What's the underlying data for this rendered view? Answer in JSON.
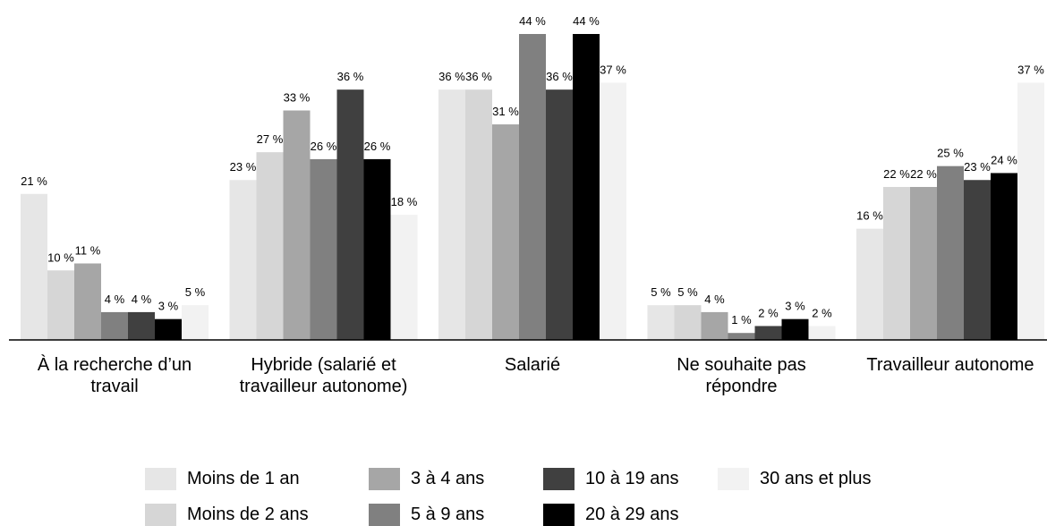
{
  "chart_data": {
    "type": "bar",
    "categories": [
      "À la recherche d’un travail",
      "Hybride (salarié et travailleur autonome)",
      "Salarié",
      "Ne souhaite pas répondre",
      "Travailleur autonome"
    ],
    "series": [
      {
        "name": "Moins de 1 an",
        "color": "#e6e6e6",
        "values": [
          21,
          23,
          36,
          5,
          16
        ],
        "value_labels": [
          "21 %",
          "23 %",
          "36 %",
          "5 %",
          "16 %"
        ]
      },
      {
        "name": "Moins de 2 ans",
        "color": "#d6d6d6",
        "values": [
          10,
          27,
          36,
          5,
          22
        ],
        "value_labels": [
          "10 %",
          "27 %",
          "36 %",
          "5 %",
          "22 %"
        ]
      },
      {
        "name": "3 à 4 ans",
        "color": "#a6a6a6",
        "values": [
          11,
          33,
          31,
          4,
          22
        ],
        "value_labels": [
          "11 %",
          "33 %",
          "31 %",
          "4 %",
          "22 %"
        ]
      },
      {
        "name": "5 à 9 ans",
        "color": "#808080",
        "values": [
          4,
          26,
          44,
          1,
          25
        ],
        "value_labels": [
          "4 %",
          "26 %",
          "44 %",
          "1 %",
          "25 %"
        ]
      },
      {
        "name": "10 à 19 ans",
        "color": "#404040",
        "values": [
          4,
          36,
          36,
          2,
          23
        ],
        "value_labels": [
          "4 %",
          "36 %",
          "36 %",
          "2 %",
          "23 %"
        ]
      },
      {
        "name": "20 à 29 ans",
        "color": "#000000",
        "values": [
          3,
          26,
          44,
          3,
          24
        ],
        "value_labels": [
          "3 %",
          "26 %",
          "44 %",
          "3 %",
          "24 %"
        ]
      },
      {
        "name": "30 ans et plus",
        "color": "#f2f2f2",
        "values": [
          5,
          18,
          37,
          2,
          37
        ],
        "value_labels": [
          "5 %",
          "18 %",
          "37 %",
          "2 %",
          "37 %"
        ]
      }
    ]
  }
}
